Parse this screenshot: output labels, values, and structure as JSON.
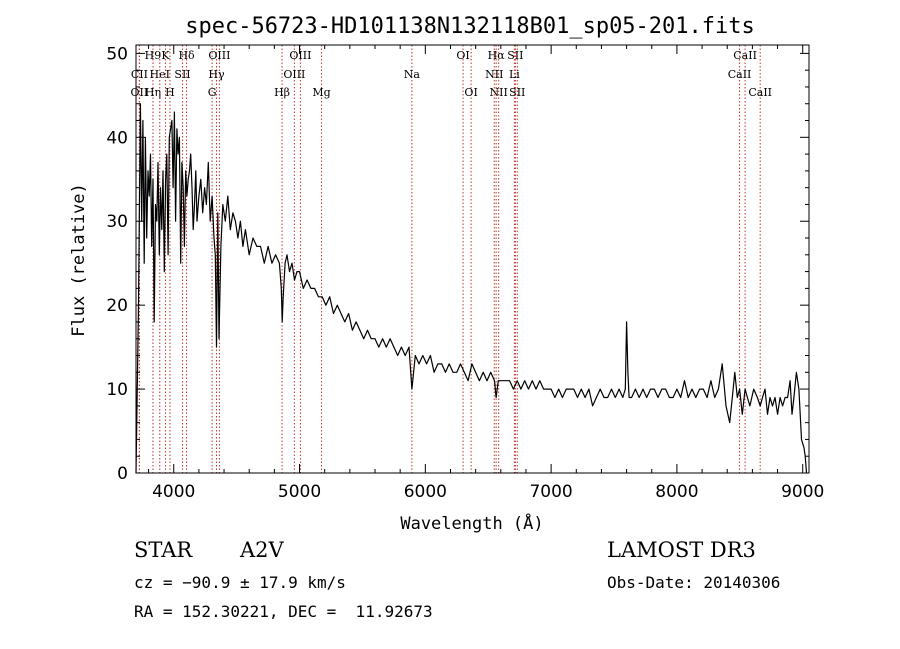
{
  "chart_data": {
    "type": "line",
    "title": "spec-56723-HD101138N132118B01_sp05-201.fits",
    "xlabel": "Wavelength (Å)",
    "ylabel": "Flux (relative)",
    "xlim": [
      3700,
      9050
    ],
    "ylim": [
      0,
      51
    ],
    "xticks": [
      4000,
      5000,
      6000,
      7000,
      8000,
      9000
    ],
    "yticks": [
      0,
      10,
      20,
      30,
      40,
      50
    ],
    "grid": false,
    "series": [
      {
        "color": "#000000",
        "x": [
          3700,
          3720,
          3735,
          3745,
          3755,
          3765,
          3775,
          3785,
          3795,
          3805,
          3815,
          3825,
          3835,
          3845,
          3855,
          3865,
          3875,
          3885,
          3895,
          3905,
          3915,
          3925,
          3935,
          3945,
          3955,
          3965,
          3975,
          3985,
          3995,
          4005,
          4015,
          4025,
          4035,
          4045,
          4055,
          4065,
          4075,
          4085,
          4095,
          4105,
          4115,
          4125,
          4135,
          4145,
          4155,
          4165,
          4175,
          4185,
          4200,
          4215,
          4230,
          4245,
          4260,
          4275,
          4290,
          4305,
          4320,
          4330,
          4340,
          4350,
          4360,
          4375,
          4390,
          4410,
          4430,
          4450,
          4470,
          4490,
          4510,
          4530,
          4550,
          4570,
          4600,
          4630,
          4660,
          4690,
          4720,
          4750,
          4780,
          4810,
          4840,
          4855,
          4862,
          4870,
          4885,
          4900,
          4920,
          4940,
          4960,
          4980,
          5000,
          5030,
          5060,
          5090,
          5120,
          5150,
          5180,
          5210,
          5240,
          5270,
          5300,
          5330,
          5360,
          5390,
          5420,
          5450,
          5480,
          5510,
          5540,
          5570,
          5600,
          5630,
          5660,
          5690,
          5720,
          5750,
          5780,
          5810,
          5840,
          5870,
          5893,
          5920,
          5950,
          5980,
          6010,
          6040,
          6070,
          6100,
          6130,
          6160,
          6190,
          6220,
          6250,
          6280,
          6310,
          6340,
          6370,
          6400,
          6430,
          6460,
          6490,
          6520,
          6550,
          6563,
          6580,
          6610,
          6640,
          6670,
          6700,
          6730,
          6760,
          6790,
          6820,
          6850,
          6880,
          6910,
          6940,
          6970,
          7000,
          7030,
          7060,
          7090,
          7120,
          7150,
          7180,
          7210,
          7240,
          7270,
          7300,
          7330,
          7360,
          7390,
          7420,
          7450,
          7480,
          7510,
          7540,
          7570,
          7590,
          7600,
          7610,
          7620,
          7640,
          7670,
          7700,
          7730,
          7760,
          7790,
          7820,
          7850,
          7880,
          7910,
          7940,
          7970,
          8000,
          8030,
          8060,
          8090,
          8120,
          8150,
          8180,
          8210,
          8240,
          8270,
          8300,
          8330,
          8360,
          8390,
          8420,
          8440,
          8460,
          8480,
          8498,
          8520,
          8542,
          8560,
          8580,
          8610,
          8640,
          8662,
          8680,
          8700,
          8720,
          8740,
          8760,
          8780,
          8800,
          8820,
          8840,
          8860,
          8880,
          8900,
          8915,
          8930,
          8950,
          8970,
          8990,
          9010,
          9020,
          9030
        ],
        "y": [
          0,
          20,
          44,
          30,
          42,
          25,
          40,
          28,
          36,
          33,
          38,
          27,
          35,
          18,
          32,
          30,
          37,
          26,
          34,
          29,
          36,
          24,
          35,
          38,
          26,
          40,
          41,
          42,
          34,
          43,
          30,
          41,
          38,
          40,
          25,
          37,
          34,
          27,
          36,
          33,
          35,
          36,
          38,
          34,
          29,
          32,
          36,
          30,
          33,
          35,
          31,
          34,
          32,
          37,
          30,
          33,
          28,
          26,
          15,
          31,
          16,
          27,
          32,
          30,
          33,
          29,
          31,
          30,
          28,
          30,
          27,
          29,
          26,
          28,
          27,
          27,
          25,
          27,
          25,
          26,
          25,
          22,
          18,
          21,
          25,
          26,
          24,
          25,
          23,
          24,
          24,
          22,
          23,
          22,
          22,
          21,
          21,
          20,
          21,
          19,
          20,
          19,
          18,
          19,
          17,
          18,
          17,
          16,
          17,
          16,
          16,
          15,
          16,
          15,
          16,
          15,
          14,
          15,
          14,
          15,
          10,
          14,
          13,
          14,
          13,
          14,
          12,
          13,
          13,
          12,
          13,
          12,
          12,
          13,
          12,
          11,
          13,
          12,
          11,
          12,
          11,
          12,
          11,
          9,
          11,
          11,
          11,
          11,
          10,
          11,
          10,
          11,
          10,
          11,
          10,
          11,
          10,
          10,
          10,
          9,
          10,
          9,
          10,
          10,
          10,
          9,
          10,
          9,
          10,
          8,
          9,
          10,
          9,
          9,
          10,
          9,
          10,
          9,
          10,
          18,
          12,
          9,
          9,
          10,
          9,
          10,
          9,
          10,
          10,
          9,
          10,
          10,
          9,
          9,
          10,
          9,
          11,
          9,
          10,
          9,
          10,
          10,
          9,
          11,
          9,
          10,
          13,
          8,
          6,
          9,
          12,
          9,
          10,
          7,
          10,
          9,
          8,
          10,
          9,
          8,
          9,
          10,
          7,
          9,
          8,
          9,
          7,
          9,
          8,
          9,
          9,
          11,
          7,
          9,
          12,
          10,
          4,
          3,
          2,
          0
        ]
      }
    ],
    "lines": [
      {
        "label": "H9",
        "x": 3835,
        "row": 0
      },
      {
        "label": "K",
        "x": 3934,
        "row": 0
      },
      {
        "label": "Hδ",
        "x": 4102,
        "row": 0
      },
      {
        "label": "OIII",
        "x": 4363,
        "row": 0
      },
      {
        "label": "OIII",
        "x": 5007,
        "row": 0
      },
      {
        "label": "OI",
        "x": 6300,
        "row": 0
      },
      {
        "label": "Hα",
        "x": 6563,
        "row": 0
      },
      {
        "label": "SII",
        "x": 6716,
        "row": 0
      },
      {
        "label": "CaII",
        "x": 8542,
        "row": 0
      },
      {
        "label": "CII",
        "x": 3727,
        "row": 1
      },
      {
        "label": "HeI",
        "x": 3889,
        "row": 1
      },
      {
        "label": "SII",
        "x": 4070,
        "row": 1
      },
      {
        "label": "Hγ",
        "x": 4340,
        "row": 1
      },
      {
        "label": "OIII",
        "x": 4959,
        "row": 1
      },
      {
        "label": "Na",
        "x": 5893,
        "row": 1
      },
      {
        "label": "NII",
        "x": 6548,
        "row": 1
      },
      {
        "label": "Li",
        "x": 6708,
        "row": 1
      },
      {
        "label": "CaII",
        "x": 8498,
        "row": 1
      },
      {
        "label": "OII",
        "x": 3727,
        "row": 2
      },
      {
        "label": "Hη",
        "x": 3835,
        "row": 2
      },
      {
        "label": "H",
        "x": 3970,
        "row": 2
      },
      {
        "label": "G",
        "x": 4305,
        "row": 2
      },
      {
        "label": "Hβ",
        "x": 4861,
        "row": 2
      },
      {
        "label": "Mg",
        "x": 5175,
        "row": 2
      },
      {
        "label": "OI",
        "x": 6364,
        "row": 2
      },
      {
        "label": "NII",
        "x": 6583,
        "row": 2
      },
      {
        "label": "SII",
        "x": 6731,
        "row": 2
      },
      {
        "label": "CaII",
        "x": 8662,
        "row": 2
      }
    ]
  },
  "info": {
    "class_label": "STAR",
    "subclass": "A2V",
    "survey": "LAMOST DR3",
    "cz": "cz = −90.9 ± 17.9 km/s",
    "obs_date": "Obs-Date: 20140306",
    "coords": "RA = 152.30221, DEC =  11.92673"
  },
  "colors": {
    "spectrum": "#000000",
    "line_marker": "#c0392b",
    "axes": "#000000"
  }
}
